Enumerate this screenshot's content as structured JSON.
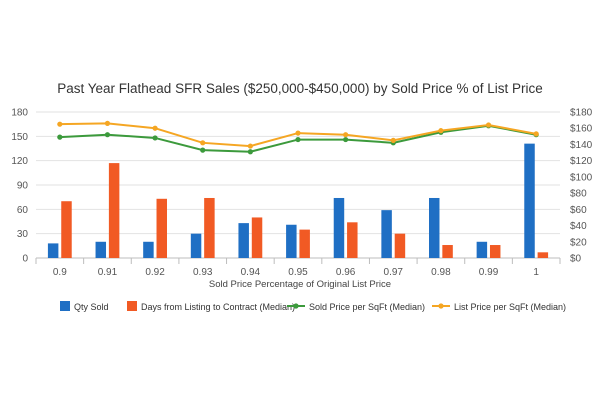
{
  "chart_data": {
    "type": "bar",
    "title": "Past Year Flathead SFR Sales ($250,000-$450,000) by Sold Price % of List Price",
    "xlabel": "Sold Price Percentage of Original List Price",
    "ylabel": "",
    "categories": [
      "0.9",
      "0.91",
      "0.92",
      "0.93",
      "0.94",
      "0.95",
      "0.96",
      "0.97",
      "0.98",
      "0.99",
      "1"
    ],
    "left_axis": {
      "ylim": [
        0,
        180
      ],
      "ticks": [
        "0",
        "30",
        "60",
        "90",
        "120",
        "150",
        "180"
      ]
    },
    "right_axis": {
      "ylim": [
        0,
        180
      ],
      "ticks": [
        "$0",
        "$20",
        "$40",
        "$60",
        "$80",
        "$100",
        "$120",
        "$140",
        "$160",
        "$180"
      ]
    },
    "grid": true,
    "legend_position": "bottom",
    "series": [
      {
        "name": "Qty Sold",
        "kind": "bar",
        "axis": "left",
        "color": "#1f6fc4",
        "values": [
          18,
          20,
          20,
          30,
          43,
          41,
          74,
          59,
          74,
          20,
          141
        ]
      },
      {
        "name": "Days from Listing to Contract (Median)",
        "kind": "bar",
        "axis": "left",
        "color": "#f15a24",
        "values": [
          70,
          117,
          73,
          74,
          50,
          35,
          44,
          30,
          16,
          16,
          7
        ]
      },
      {
        "name": "Sold Price per SqFt (Median)",
        "kind": "line",
        "axis": "right",
        "color": "#3c9a3c",
        "values": [
          149,
          152,
          148,
          133,
          131,
          146,
          146,
          142,
          155,
          163,
          152
        ]
      },
      {
        "name": "List Price per SqFt (Median)",
        "kind": "line",
        "axis": "right",
        "color": "#f5a623",
        "values": [
          165,
          166,
          160,
          142,
          138,
          154,
          152,
          145,
          157,
          164,
          153
        ]
      }
    ]
  }
}
